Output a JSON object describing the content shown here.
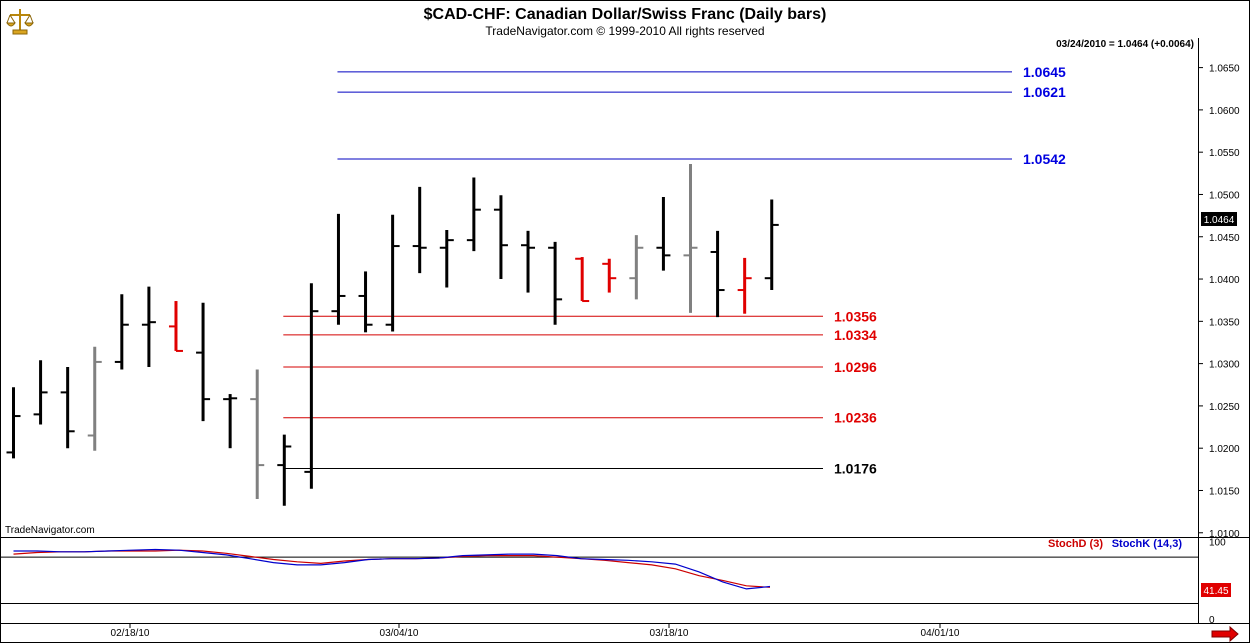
{
  "header": {
    "title": "$CAD-CHF:  Canadian Dollar/Swiss Franc  (Daily bars)",
    "subtitle": "TradeNavigator.com © 1999-2010 All rights reserved",
    "quote": "03/24/2010 = 1.0464 (+0.0064)",
    "watermark": "TradeNavigator.com",
    "last_price_tag": "1.0464"
  },
  "colors": {
    "up_bar": "#000000",
    "down_bar": "#e00000",
    "inside_bar": "#808080",
    "resistance": "#0000c0",
    "support": "#d40000",
    "stochD": "#cc0000",
    "stochK": "#0000cc"
  },
  "icons": {
    "logo": "trade-navigator-scale-logo-icon",
    "scroll": "red-arrow-right-icon"
  },
  "chart_data": [
    {
      "type": "ohlc",
      "title": "$CAD-CHF:  Canadian Dollar/Swiss Franc  (Daily bars)",
      "ylim": [
        1.0095,
        1.0685
      ],
      "y_ticks": [
        "1.0650",
        "1.0600",
        "1.0550",
        "1.0500",
        "1.0450",
        "1.0400",
        "1.0350",
        "1.0300",
        "1.0250",
        "1.0200",
        "1.0150",
        "1.0100"
      ],
      "x_tick_labels": [
        "02/18/10",
        "03/04/10",
        "03/18/10",
        "04/01/10"
      ],
      "bars": [
        {
          "o": 1.0195,
          "h": 1.0272,
          "l": 1.0188,
          "c": 1.0238,
          "color": "black"
        },
        {
          "o": 1.024,
          "h": 1.0304,
          "l": 1.0228,
          "c": 1.0266,
          "color": "black"
        },
        {
          "o": 1.0266,
          "h": 1.0296,
          "l": 1.02,
          "c": 1.022,
          "color": "black"
        },
        {
          "o": 1.0215,
          "h": 1.032,
          "l": 1.0197,
          "c": 1.0302,
          "color": "gray"
        },
        {
          "o": 1.0302,
          "h": 1.0382,
          "l": 1.0293,
          "c": 1.0346,
          "color": "black"
        },
        {
          "o": 1.0346,
          "h": 1.0391,
          "l": 1.0296,
          "c": 1.0349,
          "color": "black"
        },
        {
          "o": 1.0344,
          "h": 1.0374,
          "l": 1.0315,
          "c": 1.0315,
          "color": "red"
        },
        {
          "o": 1.0313,
          "h": 1.0372,
          "l": 1.0232,
          "c": 1.0258,
          "color": "black"
        },
        {
          "o": 1.0258,
          "h": 1.0264,
          "l": 1.02,
          "c": 1.0259,
          "color": "black"
        },
        {
          "o": 1.0258,
          "h": 1.0293,
          "l": 1.014,
          "c": 1.018,
          "color": "gray"
        },
        {
          "o": 1.018,
          "h": 1.0216,
          "l": 1.0132,
          "c": 1.0202,
          "color": "black"
        },
        {
          "o": 1.0172,
          "h": 1.0395,
          "l": 1.0152,
          "c": 1.0362,
          "color": "black"
        },
        {
          "o": 1.0362,
          "h": 1.0477,
          "l": 1.0346,
          "c": 1.038,
          "color": "black"
        },
        {
          "o": 1.038,
          "h": 1.0409,
          "l": 1.0337,
          "c": 1.0346,
          "color": "black"
        },
        {
          "o": 1.0346,
          "h": 1.0476,
          "l": 1.0338,
          "c": 1.0439,
          "color": "black"
        },
        {
          "o": 1.0439,
          "h": 1.0509,
          "l": 1.0407,
          "c": 1.0437,
          "color": "black"
        },
        {
          "o": 1.0437,
          "h": 1.0458,
          "l": 1.039,
          "c": 1.0446,
          "color": "black"
        },
        {
          "o": 1.0446,
          "h": 1.052,
          "l": 1.0433,
          "c": 1.0482,
          "color": "black"
        },
        {
          "o": 1.0482,
          "h": 1.0499,
          "l": 1.04,
          "c": 1.044,
          "color": "black"
        },
        {
          "o": 1.044,
          "h": 1.0457,
          "l": 1.0384,
          "c": 1.0437,
          "color": "black"
        },
        {
          "o": 1.0437,
          "h": 1.0444,
          "l": 1.0346,
          "c": 1.0376,
          "color": "black"
        },
        {
          "o": 1.0424,
          "h": 1.0426,
          "l": 1.0374,
          "c": 1.0374,
          "color": "red"
        },
        {
          "o": 1.0418,
          "h": 1.0424,
          "l": 1.0384,
          "c": 1.0401,
          "color": "red"
        },
        {
          "o": 1.0401,
          "h": 1.0452,
          "l": 1.0376,
          "c": 1.0437,
          "color": "gray"
        },
        {
          "o": 1.0437,
          "h": 1.0497,
          "l": 1.041,
          "c": 1.0428,
          "color": "black"
        },
        {
          "o": 1.0428,
          "h": 1.0536,
          "l": 1.036,
          "c": 1.0437,
          "color": "gray"
        },
        {
          "o": 1.0432,
          "h": 1.0457,
          "l": 1.0355,
          "c": 1.0387,
          "color": "black"
        },
        {
          "o": 1.0387,
          "h": 1.0425,
          "l": 1.0359,
          "c": 1.0401,
          "color": "red"
        },
        {
          "o": 1.0401,
          "h": 1.0494,
          "l": 1.0387,
          "c": 1.0464,
          "color": "black"
        }
      ],
      "levels": [
        {
          "value": 1.0645,
          "label": "1.0645",
          "kind": "resistance",
          "from_bar": 12
        },
        {
          "value": 1.0621,
          "label": "1.0621",
          "kind": "resistance",
          "from_bar": 12
        },
        {
          "value": 1.0542,
          "label": "1.0542",
          "kind": "resistance",
          "from_bar": 12
        },
        {
          "value": 1.0356,
          "label": "1.0356",
          "kind": "support",
          "from_bar": 10
        },
        {
          "value": 1.0334,
          "label": "1.0334",
          "kind": "support",
          "from_bar": 10
        },
        {
          "value": 1.0296,
          "label": "1.0296",
          "kind": "support",
          "from_bar": 10
        },
        {
          "value": 1.0236,
          "label": "1.0236",
          "kind": "support",
          "from_bar": 10
        },
        {
          "value": 1.0176,
          "label": "1.0176",
          "kind": "support-black",
          "from_bar": 10
        }
      ]
    },
    {
      "type": "line",
      "ylim": [
        0,
        110
      ],
      "y_ticks": [
        "100",
        "0"
      ],
      "ref_lines": [
        80,
        20
      ],
      "legend": [
        "StochD (3)",
        "StochK (14,3)"
      ],
      "last_value_tag": "41.45",
      "series": [
        {
          "name": "StochD (3)",
          "color": "red",
          "values": [
            84,
            86,
            87,
            87,
            88,
            88,
            88,
            89,
            88,
            85,
            81,
            77,
            74,
            72,
            75,
            77,
            78,
            78,
            79,
            81,
            82,
            82,
            82,
            80,
            78,
            76,
            73,
            70,
            65,
            56,
            50,
            43,
            41
          ]
        },
        {
          "name": "StochK (14,3)",
          "color": "blue",
          "values": [
            88,
            88,
            87,
            87,
            88,
            89,
            90,
            89,
            86,
            83,
            78,
            73,
            70,
            70,
            73,
            77,
            78,
            78,
            79,
            82,
            83,
            84,
            84,
            82,
            78,
            77,
            76,
            74,
            71,
            61,
            48,
            39,
            42
          ]
        }
      ]
    }
  ]
}
